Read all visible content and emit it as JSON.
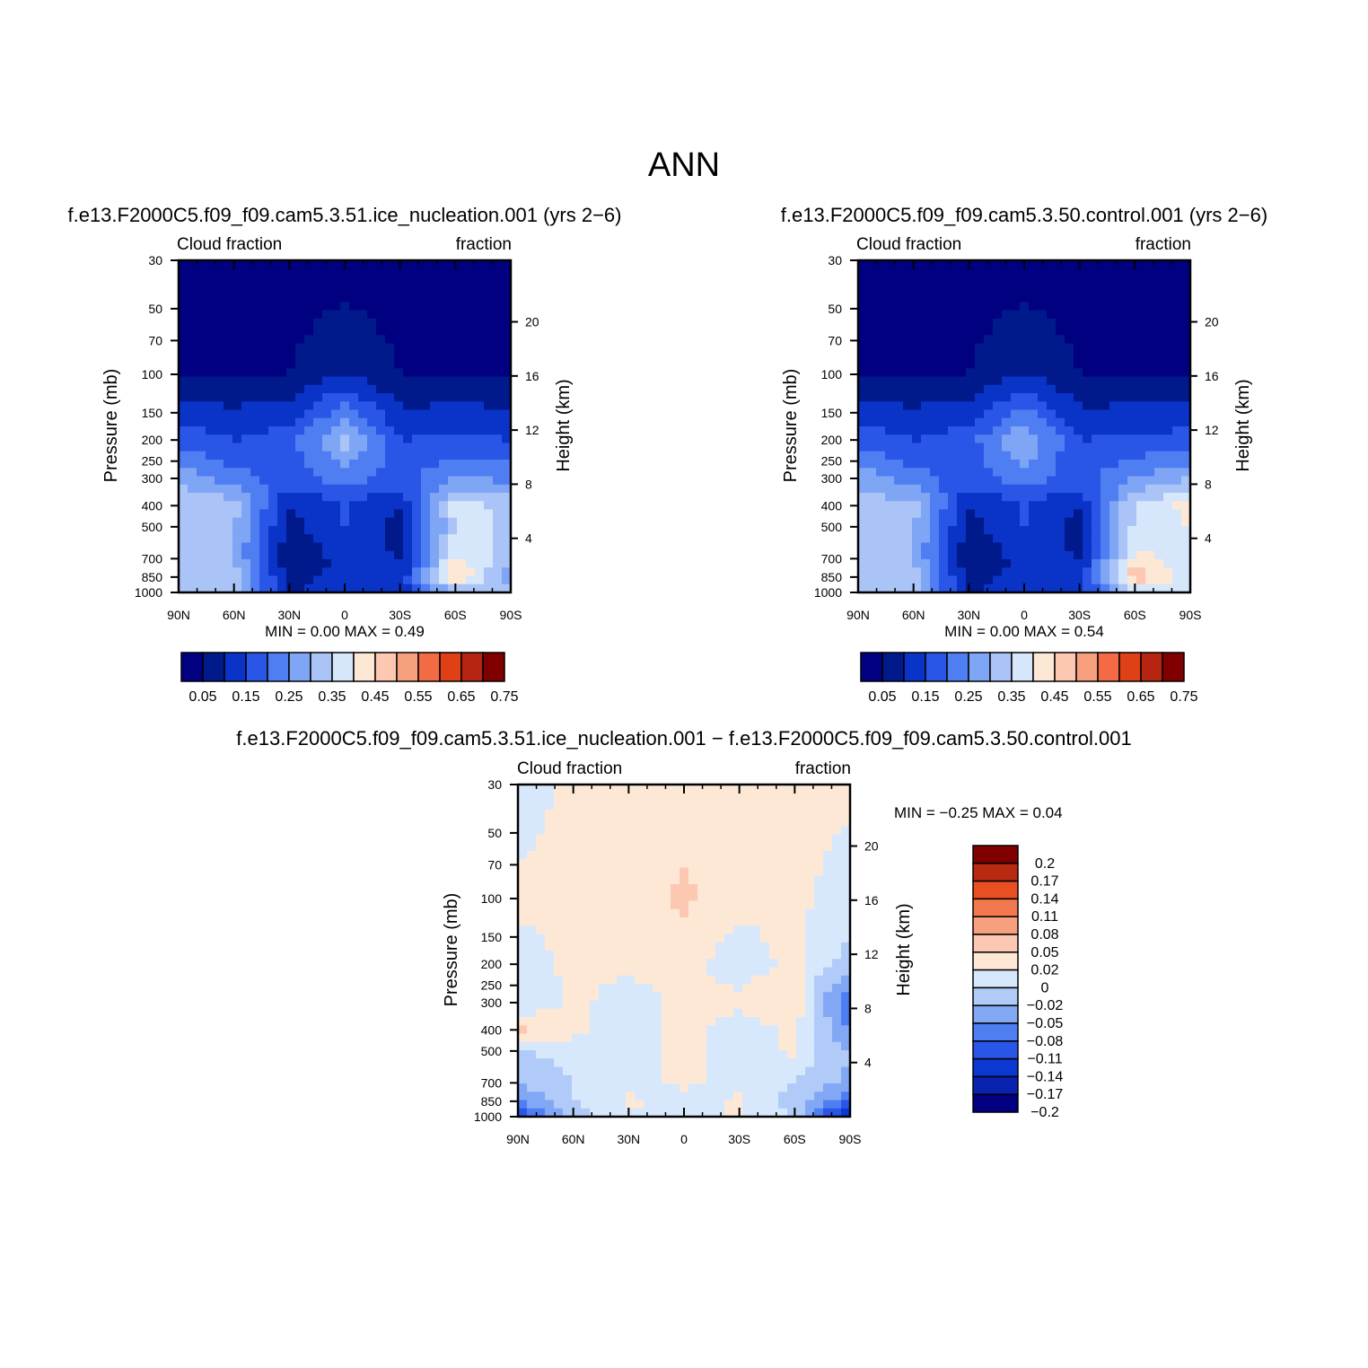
{
  "page_title": "ANN",
  "colors": {
    "seq_scale": [
      "#000080",
      "#00198b",
      "#0a33c8",
      "#2a56e8",
      "#4f7ef2",
      "#7fa5f5",
      "#aac4f7",
      "#d6e6fb",
      "#fde8d6",
      "#fcc8b2",
      "#f7a07d",
      "#f26b45",
      "#e04016",
      "#b62412",
      "#800000"
    ],
    "diff_scale": [
      "#000080",
      "#0a22b0",
      "#0a38d0",
      "#2a56e8",
      "#4f7ef2",
      "#82a8f5",
      "#b0cbf8",
      "#d8e8fc",
      "#fde8d6",
      "#fcc8b2",
      "#f7a07d",
      "#f2784d",
      "#e84f22",
      "#b82a12",
      "#800000"
    ]
  },
  "panels": [
    {
      "id": "ice_nucleation",
      "title": "f.e13.F2000C5.f09_f09.cam5.3.51.ice_nucleation.001  (yrs  2−6)",
      "left_label": "Cloud fraction",
      "right_label": "fraction",
      "stats": "MIN  =      0.00    MAX  =      0.49",
      "x_ticks": [
        "90N",
        "60N",
        "30N",
        "0",
        "30S",
        "60S",
        "90S"
      ],
      "p_ticks": [
        "30",
        "50",
        "70",
        "100",
        "150",
        "200",
        "250",
        "300",
        "400",
        "500",
        "700",
        "850",
        "1000"
      ],
      "h_ticks": [
        "20",
        "16",
        "12",
        "8",
        "4"
      ],
      "y_label": "Pressure  (mb)",
      "y2_label": "Height  (km)"
    },
    {
      "id": "control",
      "title": "f.e13.F2000C5.f09_f09.cam5.3.50.control.001  (yrs  2−6)",
      "left_label": "Cloud fraction",
      "right_label": "fraction",
      "stats": "MIN  =      0.00    MAX  =      0.54",
      "x_ticks": [
        "90N",
        "60N",
        "30N",
        "0",
        "30S",
        "60S",
        "90S"
      ],
      "p_ticks": [
        "30",
        "50",
        "70",
        "100",
        "150",
        "200",
        "250",
        "300",
        "400",
        "500",
        "700",
        "850",
        "1000"
      ],
      "h_ticks": [
        "20",
        "16",
        "12",
        "8",
        "4"
      ],
      "y_label": "Pressure  (mb)",
      "y2_label": "Height  (km)"
    },
    {
      "id": "difference",
      "title": "f.e13.F2000C5.f09_f09.cam5.3.51.ice_nucleation.001  −  f.e13.F2000C5.f09_f09.cam5.3.50.control.001",
      "left_label": "Cloud fraction",
      "right_label": "fraction",
      "stats": "MIN  =    −0.25    MAX  =      0.04",
      "x_ticks": [
        "90N",
        "60N",
        "30N",
        "0",
        "30S",
        "60S",
        "90S"
      ],
      "p_ticks": [
        "30",
        "50",
        "70",
        "100",
        "150",
        "200",
        "250",
        "300",
        "400",
        "500",
        "700",
        "850",
        "1000"
      ],
      "h_ticks": [
        "20",
        "16",
        "12",
        "8",
        "4"
      ],
      "y_label": "Pressure  (mb)",
      "y2_label": "Height  (km)"
    }
  ],
  "colorbar_seq": {
    "labels": [
      "0.05",
      "0.15",
      "0.25",
      "0.35",
      "0.45",
      "0.55",
      "0.65",
      "0.75"
    ]
  },
  "colorbar_diff": {
    "labels": [
      "0.2",
      "0.17",
      "0.14",
      "0.11",
      "0.08",
      "0.05",
      "0.02",
      "0",
      "−0.02",
      "−0.05",
      "−0.08",
      "−0.11",
      "−0.14",
      "−0.17",
      "−0.2"
    ]
  },
  "chart_data": [
    {
      "type": "heatmap",
      "title": "f.e13.F2000C5.f09_f09.cam5.3.51.ice_nucleation.001 (yrs 2-6)",
      "variable": "Cloud fraction",
      "xlabel": "",
      "ylabel": "Pressure (mb)",
      "y2label": "Height (km)",
      "xlim": [
        90,
        -90
      ],
      "ylim": [
        1000,
        30
      ],
      "min": 0.0,
      "max": 0.49,
      "contour_levels": [
        0.05,
        0.1,
        0.15,
        0.2,
        0.25,
        0.3,
        0.35,
        0.4,
        0.45,
        0.5,
        0.55,
        0.6,
        0.65,
        0.7,
        0.75
      ],
      "x": [
        90,
        60,
        30,
        0,
        -30,
        -60,
        -90
      ],
      "y": [
        1000,
        850,
        700,
        500,
        400,
        300,
        200,
        100,
        30
      ],
      "z": [
        [
          0.3,
          0.32,
          0.1,
          0.12,
          0.12,
          0.3,
          0.35
        ],
        [
          0.3,
          0.33,
          0.08,
          0.12,
          0.1,
          0.48,
          0.25
        ],
        [
          0.3,
          0.3,
          0.05,
          0.12,
          0.1,
          0.4,
          0.32
        ],
        [
          0.35,
          0.3,
          0.08,
          0.15,
          0.08,
          0.35,
          0.35
        ],
        [
          0.35,
          0.33,
          0.1,
          0.15,
          0.1,
          0.38,
          0.33
        ],
        [
          0.28,
          0.22,
          0.18,
          0.22,
          0.18,
          0.25,
          0.24
        ],
        [
          0.18,
          0.15,
          0.18,
          0.32,
          0.15,
          0.16,
          0.15
        ],
        [
          0.05,
          0.05,
          0.05,
          0.1,
          0.05,
          0.05,
          0.05
        ],
        [
          0.02,
          0.02,
          0.02,
          0.02,
          0.02,
          0.02,
          0.02
        ]
      ]
    },
    {
      "type": "heatmap",
      "title": "f.e13.F2000C5.f09_f09.cam5.3.50.control.001 (yrs 2-6)",
      "variable": "Cloud fraction",
      "xlabel": "",
      "ylabel": "Pressure (mb)",
      "y2label": "Height (km)",
      "xlim": [
        90,
        -90
      ],
      "ylim": [
        1000,
        30
      ],
      "min": 0.0,
      "max": 0.54,
      "contour_levels": [
        0.05,
        0.1,
        0.15,
        0.2,
        0.25,
        0.3,
        0.35,
        0.4,
        0.45,
        0.5,
        0.55,
        0.6,
        0.65,
        0.7,
        0.75
      ],
      "x": [
        90,
        60,
        30,
        0,
        -30,
        -60,
        -90
      ],
      "y": [
        1000,
        850,
        700,
        500,
        400,
        300,
        200,
        100,
        30
      ],
      "z": [
        [
          0.32,
          0.32,
          0.1,
          0.12,
          0.12,
          0.34,
          0.4
        ],
        [
          0.3,
          0.33,
          0.08,
          0.12,
          0.1,
          0.5,
          0.35
        ],
        [
          0.3,
          0.3,
          0.05,
          0.12,
          0.1,
          0.42,
          0.38
        ],
        [
          0.33,
          0.3,
          0.08,
          0.15,
          0.08,
          0.36,
          0.4
        ],
        [
          0.33,
          0.32,
          0.1,
          0.15,
          0.1,
          0.36,
          0.42
        ],
        [
          0.28,
          0.22,
          0.18,
          0.22,
          0.18,
          0.25,
          0.3
        ],
        [
          0.18,
          0.15,
          0.18,
          0.3,
          0.15,
          0.16,
          0.17
        ],
        [
          0.05,
          0.05,
          0.05,
          0.1,
          0.05,
          0.05,
          0.05
        ],
        [
          0.02,
          0.02,
          0.02,
          0.02,
          0.02,
          0.02,
          0.02
        ]
      ]
    },
    {
      "type": "heatmap",
      "title": "f.e13.F2000C5.f09_f09.cam5.3.51.ice_nucleation.001 - f.e13.F2000C5.f09_f09.cam5.3.50.control.001",
      "variable": "Cloud fraction",
      "xlabel": "",
      "ylabel": "Pressure (mb)",
      "y2label": "Height (km)",
      "xlim": [
        90,
        -90
      ],
      "ylim": [
        1000,
        30
      ],
      "min": -0.25,
      "max": 0.04,
      "contour_levels": [
        -0.2,
        -0.17,
        -0.14,
        -0.11,
        -0.08,
        -0.05,
        -0.02,
        0,
        0.02,
        0.05,
        0.08,
        0.11,
        0.14,
        0.17,
        0.2
      ],
      "x": [
        90,
        60,
        30,
        0,
        -30,
        -60,
        -90
      ],
      "y": [
        1000,
        850,
        700,
        500,
        400,
        300,
        200,
        100,
        30
      ],
      "z": [
        [
          -0.14,
          -0.03,
          -0.01,
          0.0,
          0.0,
          -0.02,
          -0.2
        ],
        [
          -0.08,
          -0.02,
          0.005,
          -0.01,
          0.005,
          -0.03,
          -0.11
        ],
        [
          -0.05,
          -0.02,
          -0.01,
          0.005,
          -0.01,
          -0.02,
          -0.06
        ],
        [
          -0.02,
          -0.01,
          -0.01,
          0.005,
          -0.01,
          0.005,
          -0.05
        ],
        [
          0.025,
          0.005,
          -0.01,
          0.005,
          -0.01,
          0.005,
          -0.08
        ],
        [
          -0.02,
          0.005,
          -0.01,
          0.005,
          0.005,
          0.02,
          -0.11
        ],
        [
          -0.01,
          0.005,
          0.005,
          0.005,
          -0.01,
          0.005,
          -0.03
        ],
        [
          0.005,
          0.005,
          0.005,
          0.025,
          0.005,
          0.005,
          -0.01
        ],
        [
          -0.01,
          0.005,
          0.005,
          0.005,
          0.005,
          0.005,
          0.005
        ]
      ]
    }
  ]
}
